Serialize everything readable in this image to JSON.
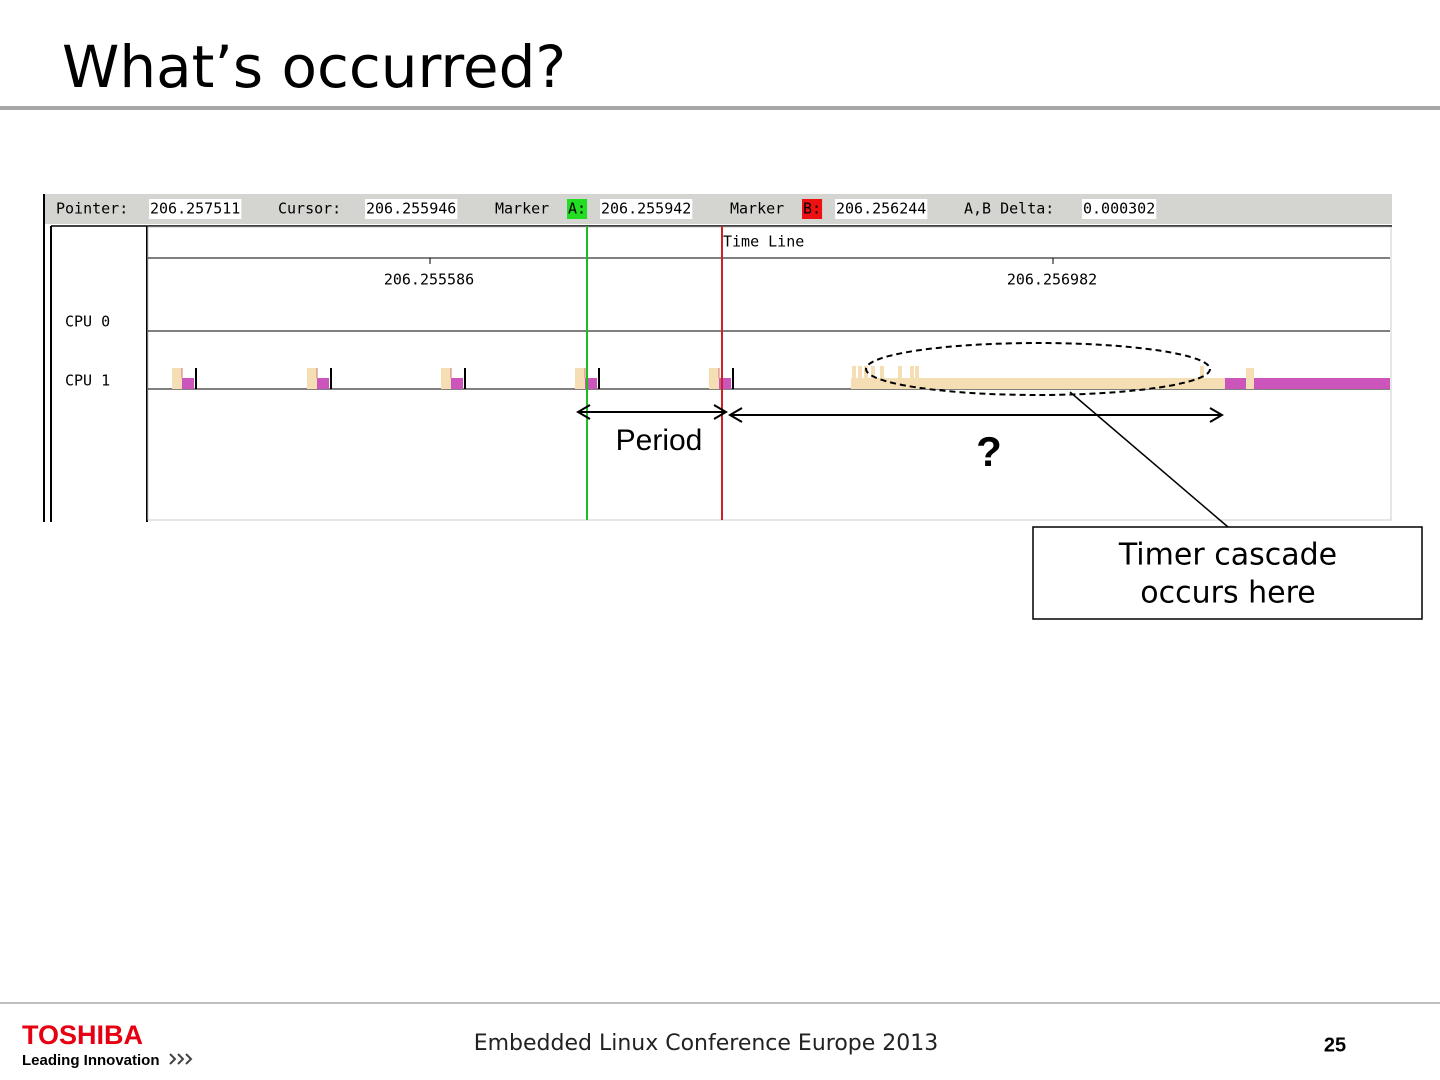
{
  "title": "What’s occurred?",
  "toolbar": {
    "pointer_label": "Pointer:",
    "pointer": "206.257511",
    "cursor_label": "Cursor:",
    "cursor": "206.255946",
    "marker_a_label": "Marker",
    "marker_a_tag": "A:",
    "marker_a": "206.255942",
    "marker_b_label": "Marker",
    "marker_b_tag": "B:",
    "marker_b": "206.256244",
    "delta_label": "A,B Delta:",
    "delta": "0.000302"
  },
  "timeline": {
    "header": "Time Line",
    "ticks": [
      "206.255586",
      "206.256982"
    ],
    "rows": [
      "CPU 0",
      "CPU 1"
    ]
  },
  "annotations": {
    "period": "Period",
    "question": "?",
    "callout": [
      "Timer cascade",
      "occurs here"
    ]
  },
  "footer": {
    "logo": "TOSHIBA",
    "tagline": "Leading Innovation",
    "event": "Embedded Linux Conference Europe 2013",
    "page": "25"
  }
}
